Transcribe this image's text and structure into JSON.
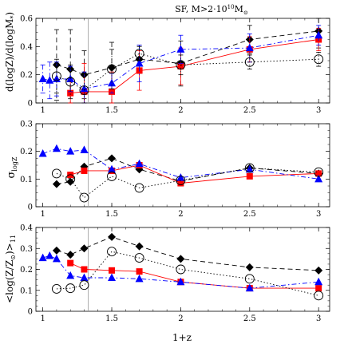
{
  "chart_data": {
    "title_main": "SF,  M>2·10",
    "title_exp": "10",
    "title_sym": "M",
    "title_sub": "⊙",
    "xlabel": "1+z",
    "vline_x": 1.33,
    "colors": {
      "black": "#000000",
      "red": "#ff0000",
      "blue": "#0000ff"
    },
    "panels": [
      {
        "type": "scatter",
        "ylabel": "d(logZ)/d(logM*)",
        "xlim": [
          0.95,
          3.08
        ],
        "ylim": [
          0,
          0.6
        ],
        "yticks": [
          0,
          0.2,
          0.4,
          0.6
        ],
        "yticklabels": [
          "0",
          "0.2",
          "0.4",
          "0.6"
        ],
        "xticks": [
          1,
          1.5,
          2,
          2.5,
          3
        ],
        "xticklabels": [
          "1",
          "1.5",
          "2",
          "2.5",
          "3"
        ],
        "series": [
          {
            "key": "black",
            "style": "black-diamond-dashed",
            "x": [
              1.1,
              1.2,
              1.3,
              1.5,
              1.7,
              2.0,
              2.5,
              3.0
            ],
            "y": [
              0.27,
              0.24,
              0.2,
              0.25,
              0.31,
              0.28,
              0.45,
              0.51
            ],
            "err": [
              0.25,
              0.28,
              0.17,
              0.18,
              0.1,
              0.16,
              0.1,
              0.12
            ]
          },
          {
            "key": "red",
            "style": "red-square-solid",
            "x": [
              1.2,
              1.3,
              1.5,
              1.7,
              2.0,
              2.5,
              3.0
            ],
            "y": [
              0.07,
              0.08,
              0.08,
              0.23,
              0.26,
              0.38,
              0.45
            ],
            "err": [
              0.1,
              0.2,
              0.14,
              0.14,
              0.13,
              0.09,
              0.08
            ]
          },
          {
            "key": "blue",
            "style": "blue-triangle-dashdot",
            "x": [
              1.0,
              1.05,
              1.1,
              1.2,
              1.3,
              1.5,
              1.7,
              2.0,
              2.5,
              3.0
            ],
            "y": [
              0.17,
              0.16,
              0.17,
              0.17,
              0.1,
              0.14,
              0.28,
              0.38,
              0.39,
              0.48
            ],
            "err": [
              0.1,
              0.13,
              0.12,
              0.09,
              0.12,
              0.07,
              0.13,
              0.1,
              0.1,
              0.07
            ]
          },
          {
            "key": "open",
            "style": "open-circle-dotted",
            "x": [
              1.1,
              1.2,
              1.3,
              1.5,
              1.7,
              2.0,
              2.5,
              3.0
            ],
            "y": [
              0.19,
              0.15,
              0.09,
              0.24,
              0.35,
              0.27,
              0.29,
              0.31
            ],
            "err": [
              0.12,
              0.12,
              0.12,
              0.14,
              0.05,
              0.07,
              0.05,
              0.05
            ]
          }
        ]
      },
      {
        "type": "scatter",
        "ylabel": "σ_logZ",
        "xlim": [
          0.95,
          3.08
        ],
        "ylim": [
          0,
          0.3
        ],
        "yticks": [
          0,
          0.1,
          0.2,
          0.3
        ],
        "yticklabels": [
          "0",
          "0.1",
          "0.2",
          "0.3"
        ],
        "xticks": [
          1,
          1.5,
          2,
          2.5,
          3
        ],
        "xticklabels": [
          "1",
          "1.5",
          "2",
          "2.5",
          "3"
        ],
        "series": [
          {
            "key": "black",
            "style": "black-diamond-dashed",
            "x": [
              1.1,
              1.2,
              1.3,
              1.5,
              1.7,
              2.0,
              2.5,
              3.0
            ],
            "y": [
              0.082,
              0.09,
              0.145,
              0.175,
              0.135,
              0.093,
              0.14,
              0.12
            ]
          },
          {
            "key": "red",
            "style": "red-square-solid",
            "x": [
              1.2,
              1.3,
              1.5,
              1.7,
              2.0,
              2.5,
              3.0
            ],
            "y": [
              0.115,
              0.13,
              0.13,
              0.15,
              0.085,
              0.11,
              0.12
            ]
          },
          {
            "key": "blue",
            "style": "blue-triangle-dashdot",
            "x": [
              1.0,
              1.1,
              1.2,
              1.3,
              1.5,
              1.7,
              2.0,
              2.5,
              3.0
            ],
            "y": [
              0.192,
              0.21,
              0.2,
              0.205,
              0.135,
              0.155,
              0.105,
              0.135,
              0.1
            ]
          },
          {
            "key": "open",
            "style": "open-circle-dotted",
            "x": [
              1.1,
              1.2,
              1.3,
              1.5,
              1.7,
              2.0,
              2.5,
              3.0
            ],
            "y": [
              0.12,
              0.1,
              0.033,
              0.11,
              0.068,
              0.095,
              0.14,
              0.125
            ]
          }
        ]
      },
      {
        "type": "scatter",
        "ylabel": "<log(Z/Z⊙)>_11",
        "xlim": [
          0.95,
          3.08
        ],
        "ylim": [
          0,
          0.4
        ],
        "yticks": [
          0,
          0.1,
          0.2,
          0.3,
          0.4
        ],
        "yticklabels": [
          "0",
          "0.1",
          "0.2",
          "0.3",
          "0.4"
        ],
        "xticks": [
          1,
          1.5,
          2,
          2.5,
          3
        ],
        "xticklabels": [
          "1",
          "1.5",
          "2",
          "2.5",
          "3"
        ],
        "series": [
          {
            "key": "black",
            "style": "black-diamond-dashed",
            "x": [
              1.1,
              1.2,
              1.3,
              1.5,
              1.7,
              2.0,
              2.5,
              3.0
            ],
            "y": [
              0.29,
              0.27,
              0.3,
              0.355,
              0.31,
              0.25,
              0.21,
              0.195
            ]
          },
          {
            "key": "red",
            "style": "red-square-solid",
            "x": [
              1.2,
              1.3,
              1.5,
              1.7,
              2.0,
              2.5,
              3.0
            ],
            "y": [
              0.23,
              0.2,
              0.195,
              0.19,
              0.14,
              0.11,
              0.11
            ]
          },
          {
            "key": "blue",
            "style": "blue-triangle-dashdot",
            "x": [
              1.0,
              1.05,
              1.1,
              1.2,
              1.3,
              1.5,
              1.7,
              2.0,
              2.5,
              3.0
            ],
            "y": [
              0.255,
              0.265,
              0.25,
              0.17,
              0.16,
              0.16,
              0.155,
              0.14,
              0.11,
              0.14
            ]
          },
          {
            "key": "open",
            "style": "open-circle-dotted",
            "x": [
              1.1,
              1.2,
              1.3,
              1.5,
              1.7,
              2.0,
              2.5,
              3.0
            ],
            "y": [
              0.107,
              0.11,
              0.125,
              0.285,
              0.255,
              0.2,
              0.155,
              0.075
            ]
          }
        ]
      }
    ]
  }
}
